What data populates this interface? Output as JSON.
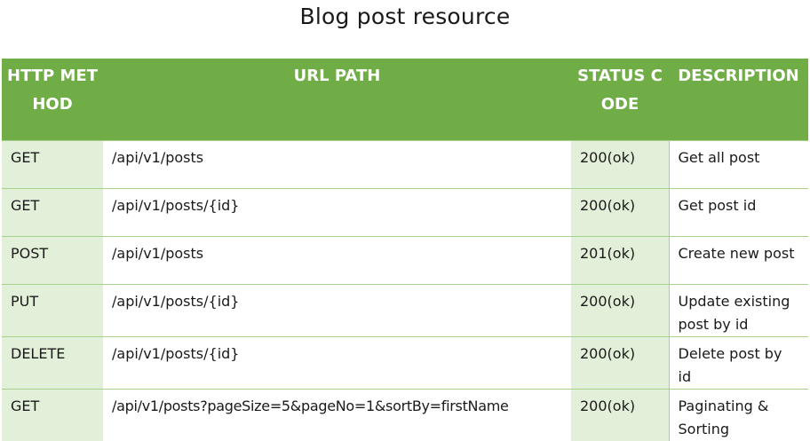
{
  "title": "Blog post resource",
  "table": {
    "headers": [
      "HTTP METHOD",
      "URL PATH",
      "STATUS CODE",
      "DESCRIPTION"
    ],
    "rows": [
      {
        "method": "GET",
        "path": "/api/v1/posts",
        "status": "200(ok)",
        "description": "Get all post"
      },
      {
        "method": "GET",
        "path": "/api/v1/posts/{id}",
        "status": "200(ok)",
        "description": "Get post id"
      },
      {
        "method": "POST",
        "path": "/api/v1/posts",
        "status": "201(ok)",
        "description": "Create new post"
      },
      {
        "method": "PUT",
        "path": "/api/v1/posts/{id}",
        "status": "200(ok)",
        "description": "Update existing post by id"
      },
      {
        "method": "DELETE",
        "path": "/api/v1/posts/{id}",
        "status": "200(ok)",
        "description": "Delete post by id"
      },
      {
        "method": "GET",
        "path": "/api/v1/posts?pageSize=5&pageNo=1&sortBy=firstName",
        "status": "200(ok)",
        "description": "Paginating & Sorting"
      }
    ]
  },
  "colors": {
    "header_bg": "#70ad47",
    "header_text": "#ffffff",
    "light_cell_bg": "#e2efd9",
    "border": "#a9d18e"
  }
}
